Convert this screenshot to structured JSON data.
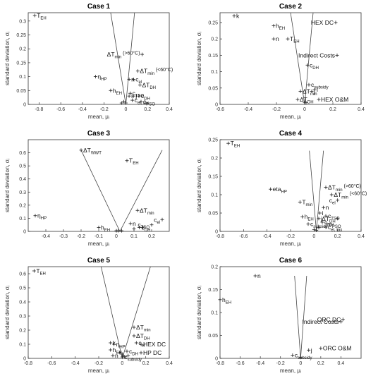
{
  "figure": {
    "xlabel": "mean, μᵢ",
    "ylabel": "standard deviation, σᵢ"
  },
  "chart_data": [
    {
      "type": "scatter",
      "title": "Case 1",
      "xlim": [
        -0.9,
        0.4
      ],
      "ylim": [
        0,
        0.33
      ],
      "xticks": [
        -0.8,
        -0.6,
        -0.4,
        -0.2,
        0,
        0.2,
        0.4
      ],
      "yticks": [
        0,
        0.05,
        0.1,
        0.15,
        0.2,
        0.25,
        0.3
      ],
      "vlines": {
        "apex": [
          0,
          0
        ],
        "top_left": [
          -0.14,
          0.33
        ],
        "top_right": [
          0.08,
          0.33
        ]
      },
      "points": [
        {
          "label": "T",
          "sub": "EH",
          "x": -0.84,
          "y": 0.32
        },
        {
          "label": "η",
          "sub": "HP",
          "x": -0.28,
          "y": 0.1
        },
        {
          "label": "ΔT",
          "sub": "min",
          "sup": "(>60°C)",
          "x": 0.15,
          "y": 0.18
        },
        {
          "label": "ΔT",
          "sub": "min",
          "sup": "(<60°C)",
          "x": 0.11,
          "y": 0.12
        },
        {
          "label": "c",
          "sub": "el",
          "x": 0.07,
          "y": 0.09
        },
        {
          "label": "n",
          "x": 0.03,
          "y": 0.09
        },
        {
          "label": "ΔT",
          "sub": "DH",
          "x": 0.13,
          "y": 0.07
        },
        {
          "label": "h",
          "sub": "EH",
          "x": -0.14,
          "y": 0.05
        },
        {
          "label": "c",
          "sub": "TSO",
          "x": 0.04,
          "y": 0.04
        },
        {
          "label": "j",
          "x": 0.07,
          "y": 0.03
        },
        {
          "label": "i",
          "x": 0.03,
          "y": 0.03
        },
        {
          "label": "c",
          "sub": "DH",
          "x": 0.12,
          "y": 0.03
        },
        {
          "label": "c",
          "sub": "el, tax",
          "x": 0.06,
          "y": 0.015
        },
        {
          "label": "c",
          "sub": "PSO",
          "x": 0.14,
          "y": 0.01
        },
        {
          "label": "",
          "x": -0.04,
          "y": 0.005
        },
        {
          "label": "",
          "x": -0.02,
          "y": 0.01
        },
        {
          "label": "",
          "x": 0,
          "y": 0.005
        }
      ]
    },
    {
      "type": "scatter",
      "title": "Case 2",
      "xlim": [
        -0.6,
        0.4
      ],
      "ylim": [
        0,
        0.28
      ],
      "xticks": [
        -0.6,
        -0.4,
        -0.2,
        0,
        0.2,
        0.4
      ],
      "yticks": [
        0,
        0.05,
        0.1,
        0.15,
        0.2,
        0.25
      ],
      "vlines": {
        "apex": [
          0,
          0
        ],
        "top_left": [
          -0.1,
          0.28
        ],
        "top_right": [
          0.06,
          0.28
        ]
      },
      "points": [
        {
          "label": "k",
          "x": -0.5,
          "y": 0.27
        },
        {
          "label": "h",
          "sub": "EH",
          "x": -0.22,
          "y": 0.24
        },
        {
          "label": "n",
          "x": -0.22,
          "y": 0.2
        },
        {
          "label": "T",
          "sub": "EH",
          "x": -0.12,
          "y": 0.2
        },
        {
          "label": "HEX DC",
          "x": 0.22,
          "y": 0.25
        },
        {
          "label": "Indirect Costs",
          "x": 0.23,
          "y": 0.15
        },
        {
          "label": "c",
          "sub": "DH",
          "x": 0.02,
          "y": 0.12
        },
        {
          "label": "c",
          "sub": "subsidy",
          "x": 0.03,
          "y": 0.06
        },
        {
          "label": "ΔT",
          "sub": "min",
          "x": -0.03,
          "y": 0.04
        },
        {
          "label": "j",
          "x": 0.05,
          "y": 0.04
        },
        {
          "label": "i",
          "x": 0.07,
          "y": 0.045
        },
        {
          "label": "ΔT",
          "sub": "DH",
          "x": -0.05,
          "y": 0.015
        },
        {
          "label": "HEX O&M",
          "x": 0.1,
          "y": 0.015
        },
        {
          "label": "",
          "x": 0,
          "y": 0.005
        },
        {
          "label": "",
          "x": 0.01,
          "y": 0.005
        }
      ]
    },
    {
      "type": "scatter",
      "title": "Case 3",
      "xlim": [
        -0.5,
        0.3
      ],
      "ylim": [
        0,
        0.7
      ],
      "xticks": [
        -0.4,
        -0.3,
        -0.2,
        -0.1,
        0,
        0.1,
        0.2
      ],
      "yticks": [
        0,
        0.1,
        0.2,
        0.3,
        0.4,
        0.5,
        0.6
      ],
      "vlines": {
        "apex": [
          0.02,
          0
        ],
        "top_left": [
          -0.2,
          0.62
        ],
        "top_right": [
          0.26,
          0.62
        ]
      },
      "points": [
        {
          "label": "ΔT",
          "sub": "WWT",
          "x": -0.2,
          "y": 0.62
        },
        {
          "label": "T",
          "sub": "EH",
          "x": 0.06,
          "y": 0.54
        },
        {
          "label": "η",
          "sub": "HP",
          "x": -0.46,
          "y": 0.12
        },
        {
          "label": "h",
          "sub": "EH",
          "x": -0.1,
          "y": 0.03
        },
        {
          "label": "ΔT",
          "sub": "min",
          "x": 0.12,
          "y": 0.16
        },
        {
          "label": "c",
          "sub": "el",
          "x": 0.26,
          "y": 0.09
        },
        {
          "label": "n",
          "x": 0.08,
          "y": 0.06
        },
        {
          "label": "c",
          "sub": "TSO",
          "x": 0.2,
          "y": 0.05
        },
        {
          "label": "c",
          "sub": "DH",
          "x": 0.13,
          "y": 0.03
        },
        {
          "label": "",
          "x": 0,
          "y": 0.005
        },
        {
          "label": "",
          "x": 0.01,
          "y": 0.005
        },
        {
          "label": "",
          "x": 0.03,
          "y": 0.005
        },
        {
          "label": "",
          "x": 0.1,
          "y": 0.02
        },
        {
          "label": "",
          "x": 0.15,
          "y": 0.03
        }
      ]
    },
    {
      "type": "scatter",
      "title": "Case 4",
      "xlim": [
        -0.8,
        0.4
      ],
      "ylim": [
        0,
        0.25
      ],
      "xticks": [
        -0.8,
        -0.6,
        -0.4,
        -0.2,
        0,
        0.2,
        0.4
      ],
      "yticks": [
        0,
        0.05,
        0.1,
        0.15,
        0.2,
        0.25
      ],
      "vlines": {
        "apex": [
          0.02,
          0
        ],
        "top_left": [
          -0.04,
          0.22
        ],
        "top_right": [
          0.08,
          0.22
        ]
      },
      "points": [
        {
          "label": "T",
          "sub": "EH",
          "x": -0.73,
          "y": 0.24
        },
        {
          "label": "eta",
          "sub": "HP",
          "x": -0.37,
          "y": 0.115
        },
        {
          "label": "T",
          "sub": "min",
          "x": -0.12,
          "y": 0.08
        },
        {
          "label": "h",
          "sub": "EH",
          "x": -0.1,
          "y": 0.04
        },
        {
          "label": "c",
          "sub": "subsidy",
          "x": -0.05,
          "y": 0.02
        },
        {
          "label": "ΔT",
          "sub": "min",
          "sup": "(>60°C)",
          "x": 0.1,
          "y": 0.12
        },
        {
          "label": "ΔT",
          "sub": "min",
          "sup": "(<60°C)",
          "x": 0.15,
          "y": 0.1
        },
        {
          "label": "c",
          "sub": "el",
          "x": 0.2,
          "y": 0.085
        },
        {
          "label": "n",
          "x": 0.08,
          "y": 0.065
        },
        {
          "label": "c",
          "sub": "TSO",
          "x": 0.1,
          "y": 0.042
        },
        {
          "label": "i",
          "x": 0.05,
          "y": 0.05
        },
        {
          "label": "ΔT",
          "sub": "DH",
          "x": 0.2,
          "y": 0.035
        },
        {
          "label": "j",
          "x": 0.04,
          "y": 0.035
        },
        {
          "label": "c",
          "sub": "DH",
          "x": 0.07,
          "y": 0.025
        },
        {
          "label": "c",
          "sub": "PSO",
          "x": 0.11,
          "y": 0.02
        },
        {
          "label": "c",
          "sub": "el, tax",
          "x": 0.1,
          "y": 0.012
        },
        {
          "label": "",
          "x": 0,
          "y": 0.005
        },
        {
          "label": "",
          "x": 0.02,
          "y": 0.003
        },
        {
          "label": "",
          "x": 0.04,
          "y": 0.01
        }
      ]
    },
    {
      "type": "scatter",
      "title": "Case 5",
      "xlim": [
        -0.8,
        0.4
      ],
      "ylim": [
        0,
        0.65
      ],
      "xticks": [
        -0.8,
        -0.6,
        -0.4,
        -0.2,
        0,
        0.2,
        0.4
      ],
      "yticks": [
        0,
        0.1,
        0.2,
        0.3,
        0.4,
        0.5,
        0.6
      ],
      "vlines": {
        "apex": [
          0,
          0
        ],
        "top_left": [
          -0.18,
          0.65
        ],
        "top_right": [
          0.24,
          0.65
        ]
      },
      "points": [
        {
          "label": "T",
          "sub": "EH",
          "x": -0.75,
          "y": 0.62
        },
        {
          "label": "ΔT",
          "sub": "min",
          "x": 0.1,
          "y": 0.22
        },
        {
          "label": "ΔT",
          "sub": "DH",
          "x": 0.1,
          "y": 0.16
        },
        {
          "label": "c",
          "sub": "el",
          "x": 0.12,
          "y": 0.11
        },
        {
          "label": "k",
          "x": -0.1,
          "y": 0.11
        },
        {
          "label": "η",
          "sub": "HP",
          "x": -0.07,
          "y": 0.1
        },
        {
          "label": "HEX DC",
          "x": 0.16,
          "y": 0.1
        },
        {
          "label": "h",
          "sub": "EH",
          "x": -0.1,
          "y": 0.06
        },
        {
          "label": "c",
          "sub": "DH",
          "x": 0.04,
          "y": 0.05
        },
        {
          "label": "HP DC",
          "x": 0.16,
          "y": 0.04
        },
        {
          "label": "n",
          "x": -0.08,
          "y": 0.02
        },
        {
          "label": "c",
          "sub": "subsidy",
          "x": 0.0,
          "y": 0.01
        },
        {
          "label": "",
          "x": 0,
          "y": 0.03
        },
        {
          "label": "",
          "x": 0.01,
          "y": 0.02
        },
        {
          "label": "",
          "x": 0.02,
          "y": 0.01
        },
        {
          "label": "",
          "x": -0.02,
          "y": 0.04
        },
        {
          "label": "",
          "x": 0.05,
          "y": 0.02
        }
      ]
    },
    {
      "type": "scatter",
      "title": "Case 6",
      "xlim": [
        -0.8,
        0.6
      ],
      "ylim": [
        0,
        0.2
      ],
      "xticks": [
        -0.8,
        -0.6,
        -0.4,
        -0.2,
        0,
        0.2,
        0.4
      ],
      "yticks": [
        0,
        0.05,
        0.1,
        0.15,
        0.2
      ],
      "vlines": {
        "apex": [
          0,
          0
        ],
        "top_left": [
          -0.06,
          0.18
        ],
        "top_right": [
          0.06,
          0.18
        ]
      },
      "points": [
        {
          "label": "n",
          "x": -0.45,
          "y": 0.18
        },
        {
          "label": "h",
          "sub": "EH",
          "x": -0.8,
          "y": 0.128
        },
        {
          "label": "ORC DC",
          "x": 0.42,
          "y": 0.085
        },
        {
          "label": "Indirect Costs",
          "x": 0.4,
          "y": 0.08
        },
        {
          "label": "c",
          "sub": "subsidy",
          "x": -0.08,
          "y": 0.007
        },
        {
          "label": "j",
          "x": 0.08,
          "y": 0.018
        },
        {
          "label": "ORC O&M",
          "x": 0.2,
          "y": 0.022
        },
        {
          "label": "",
          "x": 0,
          "y": 0.002
        }
      ]
    }
  ]
}
